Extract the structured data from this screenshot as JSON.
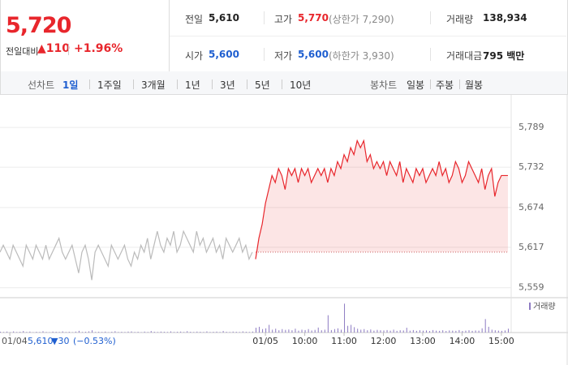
{
  "header": {
    "price": "5,720",
    "change_label": "전일대비",
    "change": "▲110",
    "rate": "+1.96%",
    "stats": [
      [
        {
          "label": "전일",
          "value": "5,610"
        },
        {
          "label": "고가",
          "value": "5,770",
          "note": "(상한가 7,290)"
        },
        {
          "label": "거래량",
          "value": "138,934"
        }
      ],
      [
        {
          "label": "시가",
          "value": "5,600"
        },
        {
          "label": "저가",
          "value": "5,600",
          "note": "(하한가 3,930)"
        },
        {
          "label": "거래대금",
          "value": "795 백만"
        }
      ]
    ]
  },
  "tabs": {
    "line_label": "선차트",
    "periods": [
      "1일",
      "1주일",
      "3개월",
      "1년",
      "3년",
      "5년",
      "10년"
    ],
    "selected": 0,
    "candle_label": "봉차트",
    "candles": [
      "일봉",
      "주봉",
      "월봉"
    ]
  },
  "footer": {
    "date": "01/04",
    "price": "5,610",
    "change": "▼30",
    "rate": "(−0.53%)"
  },
  "chart_data": {
    "type": "line",
    "ylim": [
      5547,
      5809
    ],
    "yticks": [
      {
        "value": 5789,
        "label": "5,789"
      },
      {
        "value": 5732,
        "label": "5,732"
      },
      {
        "value": 5674,
        "label": "5,674"
      },
      {
        "value": 5617,
        "label": "5,617"
      },
      {
        "value": 5559,
        "label": "5,559"
      }
    ],
    "xlim": [
      0,
      156
    ],
    "xticks": [
      {
        "value": 3,
        "label": "01/04"
      },
      {
        "value": 81,
        "label": "01/05"
      },
      {
        "value": 93,
        "label": "10:00"
      },
      {
        "value": 105,
        "label": "11:00"
      },
      {
        "value": 117,
        "label": "12:00"
      },
      {
        "value": 129,
        "label": "13:00"
      },
      {
        "value": 141,
        "label": "14:00"
      },
      {
        "value": 153,
        "label": "15:00"
      }
    ],
    "grid": true,
    "reference_value": 5610,
    "volume_label": "거래량",
    "volume_color": "#8e7cc3",
    "volume_lim": [
      0,
      16000
    ],
    "series": [
      {
        "color": "#bbbbbb",
        "fill": false,
        "x": [
          0,
          1,
          2,
          3,
          4,
          5,
          6,
          7,
          8,
          9,
          10,
          11,
          12,
          13,
          14,
          15,
          16,
          17,
          18,
          19,
          20,
          21,
          22,
          23,
          24,
          25,
          26,
          27,
          28,
          29,
          30,
          31,
          32,
          33,
          34,
          35,
          36,
          37,
          38,
          39,
          40,
          41,
          42,
          43,
          44,
          45,
          46,
          47,
          48,
          49,
          50,
          51,
          52,
          53,
          54,
          55,
          56,
          57,
          58,
          59,
          60,
          61,
          62,
          63,
          64,
          65,
          66,
          67,
          68,
          69,
          70,
          71,
          72,
          73,
          74,
          75,
          76,
          77
        ],
        "values": [
          5610,
          5620,
          5610,
          5600,
          5620,
          5610,
          5600,
          5590,
          5620,
          5610,
          5600,
          5620,
          5610,
          5600,
          5620,
          5600,
          5610,
          5620,
          5630,
          5610,
          5600,
          5610,
          5620,
          5600,
          5580,
          5610,
          5620,
          5600,
          5570,
          5610,
          5620,
          5610,
          5600,
          5590,
          5620,
          5610,
          5600,
          5610,
          5620,
          5600,
          5590,
          5610,
          5600,
          5620,
          5610,
          5630,
          5600,
          5620,
          5640,
          5620,
          5610,
          5630,
          5620,
          5640,
          5610,
          5620,
          5640,
          5630,
          5620,
          5610,
          5640,
          5620,
          5630,
          5610,
          5620,
          5630,
          5610,
          5620,
          5600,
          5630,
          5620,
          5610,
          5620,
          5630,
          5610,
          5620,
          5600,
          5610
        ],
        "volume": [
          400,
          300,
          500,
          200,
          600,
          300,
          400,
          800,
          300,
          500,
          200,
          400,
          300,
          700,
          300,
          200,
          500,
          400,
          300,
          600,
          300,
          400,
          200,
          500,
          900,
          300,
          400,
          600,
          1200,
          300,
          400,
          300,
          500,
          200,
          400,
          700,
          300,
          400,
          300,
          500,
          600,
          300,
          400,
          200,
          500,
          300,
          800,
          400,
          300,
          500,
          400,
          300,
          600,
          300,
          400,
          500,
          300,
          700,
          400,
          300,
          500,
          400,
          300,
          600,
          300,
          400,
          500,
          300,
          800,
          400,
          300,
          500,
          400,
          300,
          600,
          400,
          300,
          500
        ]
      },
      {
        "color": "#e8262c",
        "fill": true,
        "x": [
          78,
          79,
          80,
          81,
          82,
          83,
          84,
          85,
          86,
          87,
          88,
          89,
          90,
          91,
          92,
          93,
          94,
          95,
          96,
          97,
          98,
          99,
          100,
          101,
          102,
          103,
          104,
          105,
          106,
          107,
          108,
          109,
          110,
          111,
          112,
          113,
          114,
          115,
          116,
          117,
          118,
          119,
          120,
          121,
          122,
          123,
          124,
          125,
          126,
          127,
          128,
          129,
          130,
          131,
          132,
          133,
          134,
          135,
          136,
          137,
          138,
          139,
          140,
          141,
          142,
          143,
          144,
          145,
          146,
          147,
          148,
          149,
          150,
          151,
          152,
          153,
          154,
          155
        ],
        "values": [
          5600,
          5630,
          5650,
          5680,
          5700,
          5720,
          5710,
          5730,
          5720,
          5700,
          5730,
          5720,
          5730,
          5710,
          5730,
          5720,
          5730,
          5710,
          5720,
          5730,
          5720,
          5730,
          5710,
          5730,
          5720,
          5740,
          5730,
          5750,
          5740,
          5760,
          5750,
          5770,
          5760,
          5770,
          5740,
          5750,
          5730,
          5740,
          5730,
          5740,
          5720,
          5740,
          5730,
          5720,
          5740,
          5710,
          5730,
          5720,
          5710,
          5730,
          5720,
          5730,
          5710,
          5720,
          5730,
          5720,
          5740,
          5720,
          5730,
          5710,
          5720,
          5740,
          5730,
          5710,
          5720,
          5740,
          5730,
          5720,
          5710,
          5730,
          5700,
          5720,
          5730,
          5690,
          5710,
          5720,
          5720,
          5720
        ],
        "volume": [
          2500,
          3000,
          1800,
          2200,
          4000,
          1500,
          2000,
          1200,
          1800,
          1400,
          1600,
          1200,
          2000,
          1000,
          1500,
          1300,
          1800,
          1100,
          1400,
          2600,
          1200,
          1500,
          9000,
          1300,
          1800,
          2200,
          1500,
          15000,
          3500,
          4000,
          2800,
          2000,
          1500,
          1800,
          1200,
          1600,
          1000,
          1400,
          1200,
          1100,
          1300,
          1000,
          1500,
          900,
          1200,
          1100,
          2500,
          1000,
          1300,
          900,
          1200,
          1000,
          1100,
          800,
          1300,
          1000,
          900,
          1200,
          800,
          1100,
          1000,
          900,
          1300,
          800,
          1000,
          1200,
          900,
          1100,
          1000,
          2200,
          7000,
          3000,
          1500,
          1200,
          1000,
          900,
          1100,
          2000
        ]
      }
    ]
  }
}
